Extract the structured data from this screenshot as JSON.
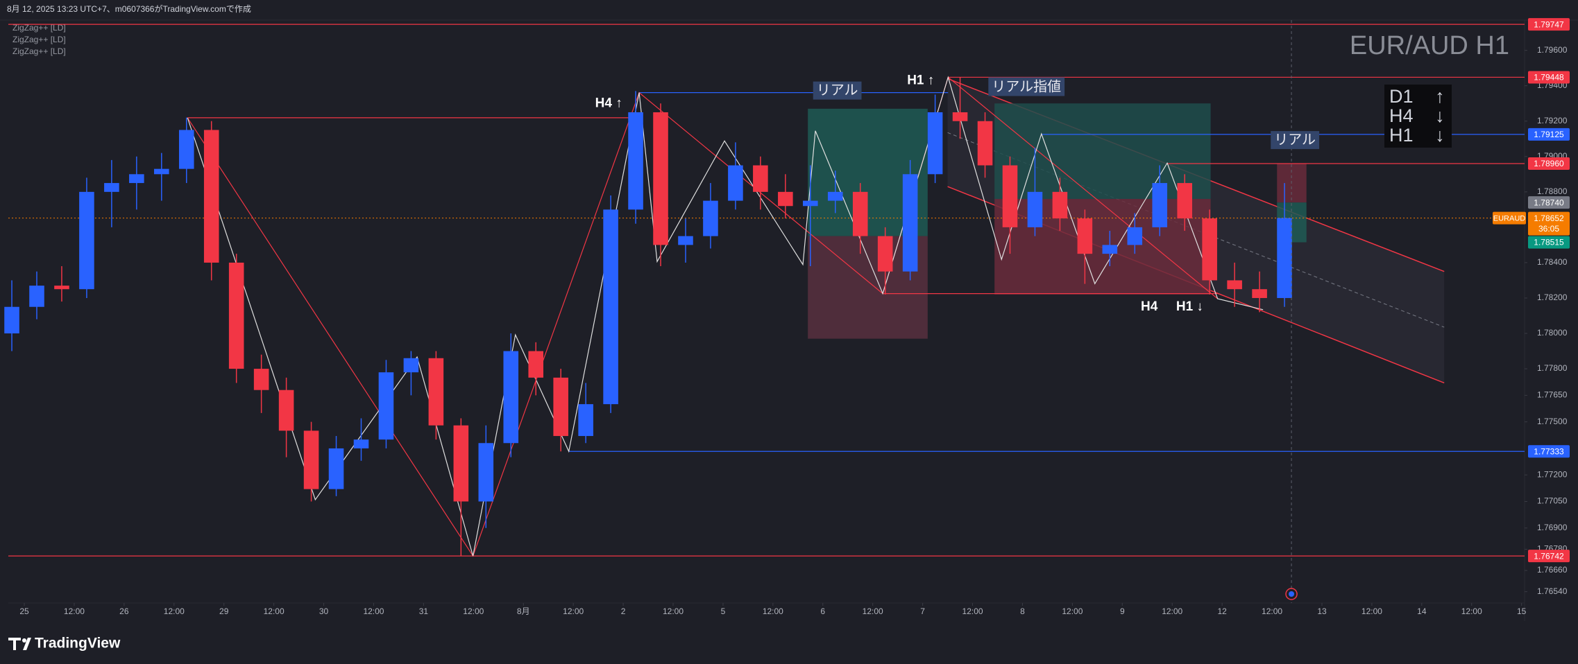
{
  "header": {
    "caption": "8月 12, 2025 13:23 UTC+7、m0607366がTradingView.comで作成"
  },
  "indicators": [
    "ZigZag++ [LD]",
    "ZigZag++ [LD]",
    "ZigZag++ [LD]"
  ],
  "chart_data": {
    "type": "candlestick",
    "title": "EUR/AUD H1",
    "up_color": "#2962ff",
    "down_color": "#f23645",
    "x": [
      -0.25,
      0.25,
      0.75,
      1.25,
      1.75,
      2.25,
      2.75,
      3.25,
      3.75,
      4.25,
      4.75,
      5.25,
      5.75,
      6.25,
      6.75,
      7.25,
      7.75,
      8.25,
      8.75,
      9.25,
      9.75,
      10.25,
      10.75,
      11.25,
      11.75,
      12.25,
      12.75,
      13.25,
      13.75,
      14.25,
      14.75,
      15.25,
      15.75,
      16.25,
      16.75,
      17.25,
      17.75,
      18.25,
      18.75,
      19.25,
      19.75,
      20.25,
      20.75,
      21.25,
      21.75,
      22.25,
      22.75,
      23.25,
      23.75,
      24.25,
      24.75,
      25.25
    ],
    "open": [
      1.78,
      1.7815,
      1.7827,
      1.7825,
      1.788,
      1.7885,
      1.789,
      1.7893,
      1.7915,
      1.784,
      1.778,
      1.7768,
      1.7745,
      1.7712,
      1.7735,
      1.774,
      1.7778,
      1.7786,
      1.7748,
      1.7705,
      1.7738,
      1.779,
      1.7775,
      1.7742,
      1.776,
      1.787,
      1.7925,
      1.785,
      1.7855,
      1.7875,
      1.7895,
      1.788,
      1.7872,
      1.7875,
      1.788,
      1.7855,
      1.7835,
      1.789,
      1.7925,
      1.792,
      1.7895,
      1.786,
      1.788,
      1.7865,
      1.7845,
      1.785,
      1.786,
      1.7885,
      1.7865,
      1.783,
      1.7825,
      1.782
    ],
    "high": [
      1.783,
      1.7835,
      1.7838,
      1.7888,
      1.7898,
      1.79,
      1.7902,
      1.7922,
      1.792,
      1.7845,
      1.7788,
      1.7775,
      1.775,
      1.7742,
      1.7752,
      1.7785,
      1.779,
      1.779,
      1.7752,
      1.7748,
      1.78,
      1.7795,
      1.778,
      1.7772,
      1.7878,
      1.7937,
      1.793,
      1.7865,
      1.7885,
      1.7908,
      1.79,
      1.789,
      1.7895,
      1.7892,
      1.7885,
      1.786,
      1.7898,
      1.7935,
      1.79448,
      1.7925,
      1.79,
      1.7905,
      1.7888,
      1.787,
      1.7858,
      1.7868,
      1.7895,
      1.789,
      1.787,
      1.784,
      1.7835,
      1.7885
    ],
    "low": [
      1.779,
      1.7808,
      1.7818,
      1.782,
      1.786,
      1.787,
      1.7875,
      1.7885,
      1.783,
      1.7772,
      1.7755,
      1.773,
      1.7705,
      1.7708,
      1.7728,
      1.7735,
      1.7765,
      1.774,
      1.76742,
      1.769,
      1.773,
      1.7765,
      1.77333,
      1.7738,
      1.7755,
      1.7862,
      1.7838,
      1.784,
      1.7848,
      1.787,
      1.787,
      1.7865,
      1.7838,
      1.7868,
      1.7845,
      1.7822,
      1.783,
      1.7885,
      1.791,
      1.7888,
      1.7845,
      1.7855,
      1.7858,
      1.7828,
      1.7838,
      1.7845,
      1.7855,
      1.7858,
      1.7822,
      1.7815,
      1.7812,
      1.7815
    ],
    "close": [
      1.7815,
      1.7827,
      1.7825,
      1.788,
      1.7885,
      1.789,
      1.7893,
      1.7915,
      1.784,
      1.778,
      1.7768,
      1.7745,
      1.7712,
      1.7735,
      1.774,
      1.7778,
      1.7786,
      1.7748,
      1.7705,
      1.7738,
      1.779,
      1.7775,
      1.7742,
      1.776,
      1.787,
      1.7925,
      1.785,
      1.7855,
      1.7875,
      1.7895,
      1.788,
      1.7872,
      1.7875,
      1.788,
      1.7855,
      1.7835,
      1.789,
      1.7925,
      1.792,
      1.7895,
      1.786,
      1.788,
      1.7865,
      1.7845,
      1.785,
      1.786,
      1.7885,
      1.7865,
      1.783,
      1.7825,
      1.782,
      1.78652
    ],
    "xlim": [
      -0.32,
      30.06
    ],
    "ylim": [
      1.76476,
      1.79771
    ],
    "xticks": [
      {
        "value": 0,
        "label": "25"
      },
      {
        "value": 1,
        "label": "12:00"
      },
      {
        "value": 2,
        "label": "26"
      },
      {
        "value": 3,
        "label": "12:00"
      },
      {
        "value": 4,
        "label": "29"
      },
      {
        "value": 5,
        "label": "12:00"
      },
      {
        "value": 6,
        "label": "30"
      },
      {
        "value": 7,
        "label": "12:00"
      },
      {
        "value": 8,
        "label": "31"
      },
      {
        "value": 9,
        "label": "12:00"
      },
      {
        "value": 10,
        "label": "8月"
      },
      {
        "value": 11,
        "label": "12:00"
      },
      {
        "value": 12,
        "label": "2"
      },
      {
        "value": 13,
        "label": "12:00"
      },
      {
        "value": 14,
        "label": "5"
      },
      {
        "value": 15,
        "label": "12:00"
      },
      {
        "value": 16,
        "label": "6"
      },
      {
        "value": 17,
        "label": "12:00"
      },
      {
        "value": 18,
        "label": "7"
      },
      {
        "value": 19,
        "label": "12:00"
      },
      {
        "value": 20,
        "label": "8"
      },
      {
        "value": 21,
        "label": "12:00"
      },
      {
        "value": 22,
        "label": "9"
      },
      {
        "value": 23,
        "label": "12:00"
      },
      {
        "value": 24,
        "label": "12"
      },
      {
        "value": 25,
        "label": "12:00"
      },
      {
        "value": 26,
        "label": "13"
      },
      {
        "value": 27,
        "label": "12:00"
      },
      {
        "value": 28,
        "label": "14"
      },
      {
        "value": 29,
        "label": "12:00"
      },
      {
        "value": 30,
        "label": "15"
      }
    ],
    "yticks": [
      {
        "value": 1.796,
        "label": "1.79600"
      },
      {
        "value": 1.794,
        "label": "1.79400"
      },
      {
        "value": 1.792,
        "label": "1.79200"
      },
      {
        "value": 1.79,
        "label": "1.79000"
      },
      {
        "value": 1.788,
        "label": "1.78800"
      },
      {
        "value": 1.784,
        "label": "1.78400"
      },
      {
        "value": 1.782,
        "label": "1.78200"
      },
      {
        "value": 1.78,
        "label": "1.78000"
      },
      {
        "value": 1.778,
        "label": "1.77800"
      },
      {
        "value": 1.7765,
        "label": "1.77650"
      },
      {
        "value": 1.775,
        "label": "1.77500"
      },
      {
        "value": 1.772,
        "label": "1.77200"
      },
      {
        "value": 1.7705,
        "label": "1.77050"
      },
      {
        "value": 1.769,
        "label": "1.76900"
      },
      {
        "value": 1.7678,
        "label": "1.76780"
      },
      {
        "value": 1.7666,
        "label": "1.76660"
      },
      {
        "value": 1.7654,
        "label": "1.76540"
      }
    ],
    "grid": false,
    "levels": [
      {
        "value": 1.79747,
        "label": "1.79747",
        "color": "#f23645"
      },
      {
        "value": 1.79448,
        "label": "1.79448",
        "color": "#f23645",
        "from": 18.51
      },
      {
        "value": 1.79125,
        "label": "1.79125",
        "color": "#2962ff",
        "from": 20.38
      },
      {
        "value": 1.7896,
        "label": "1.78960",
        "color": "#f23645",
        "from": 22.9
      },
      {
        "value": 1.7874,
        "label": "1.78740",
        "color": "#787b86",
        "line": false
      },
      {
        "value": 1.78515,
        "label": "1.78515",
        "color": "#089981",
        "line": false
      },
      {
        "value": 1.77333,
        "label": "1.77333",
        "color": "#2962ff",
        "from": 10.91
      },
      {
        "value": 1.76742,
        "label": "1.76742",
        "color": "#f23645"
      }
    ],
    "current": {
      "value": 1.78652,
      "label": "1.78652",
      "symbol": "EURAUD",
      "countdown": "36:05",
      "color": "#f57c00"
    },
    "segments": [
      {
        "value": 1.79219,
        "from": 3.27,
        "to": 12.2,
        "color": "#f23645"
      },
      {
        "value": 1.79361,
        "from": 12.32,
        "to": 18.51,
        "color": "#2962ff"
      },
      {
        "value": 1.78225,
        "from": 17.2,
        "to": 23.91,
        "color": "#f23645"
      }
    ],
    "boxes": [
      {
        "x": [
          15.7,
          18.1
        ],
        "prices": [
          1.7927,
          1.7855,
          1.7797
        ],
        "colors": [
          "#1e5a55",
          "#583040"
        ]
      },
      {
        "x": [
          19.44,
          23.77
        ],
        "prices": [
          1.793,
          1.7876,
          1.7822
        ],
        "colors": [
          "#1e4e4c",
          "#6a2c3c"
        ]
      },
      {
        "x": [
          25.1,
          25.69
        ],
        "prices": [
          1.7896,
          1.7874,
          1.78515
        ],
        "colors": [
          "#6a2c3c",
          "#1e5a55"
        ]
      }
    ],
    "channel": {
      "x": [
        18.5,
        28.45
      ],
      "upper": [
        1.7944,
        1.7835
      ],
      "lower": [
        1.7883,
        1.7772
      ],
      "color": "#f23645"
    },
    "zigzag_minor": {
      "color": "#e0e0e0",
      "x": [
        3.27,
        5.83,
        7.87,
        8.99,
        9.84,
        10.91,
        12.32,
        12.68,
        14.03,
        15.6,
        15.85,
        17.2,
        18.51,
        19.58,
        20.38,
        21.45,
        22.9,
        23.91,
        24.82
      ],
      "y": [
        1.79219,
        1.7706,
        1.77867,
        1.76742,
        1.77992,
        1.77333,
        1.79361,
        1.78406,
        1.79088,
        1.78389,
        1.79145,
        1.78225,
        1.79448,
        1.78418,
        1.79128,
        1.78281,
        1.78963,
        1.78196,
        1.78134
      ]
    },
    "zigzag_major": {
      "color": "#f23645",
      "x": [
        3.27,
        8.99,
        12.32,
        17.2,
        18.51,
        23.91
      ],
      "y": [
        1.79219,
        1.76742,
        1.79361,
        1.78225,
        1.79448,
        1.78196
      ]
    },
    "annotations": [
      {
        "text": "H4 ↑",
        "x": 11.71,
        "y": 1.79298
      },
      {
        "text": "リアル",
        "x": 16.29,
        "y": 1.7937,
        "boxed": true
      },
      {
        "text": "H1 ↑",
        "x": 17.96,
        "y": 1.79429
      },
      {
        "text": "リアル指値",
        "x": 20.08,
        "y": 1.7939,
        "boxed": true
      },
      {
        "text": "リアル",
        "x": 25.46,
        "y": 1.7909,
        "boxed": true
      },
      {
        "text": "H4",
        "x": 22.54,
        "y": 1.7815
      },
      {
        "text": "H1 ↓",
        "x": 23.35,
        "y": 1.7815
      }
    ],
    "trend_table": [
      {
        "tf": "D1",
        "dir": "↑"
      },
      {
        "tf": "H4",
        "dir": "↓"
      },
      {
        "tf": "H1",
        "dir": "↓"
      }
    ]
  },
  "footer": {
    "brand": "TradingView"
  }
}
